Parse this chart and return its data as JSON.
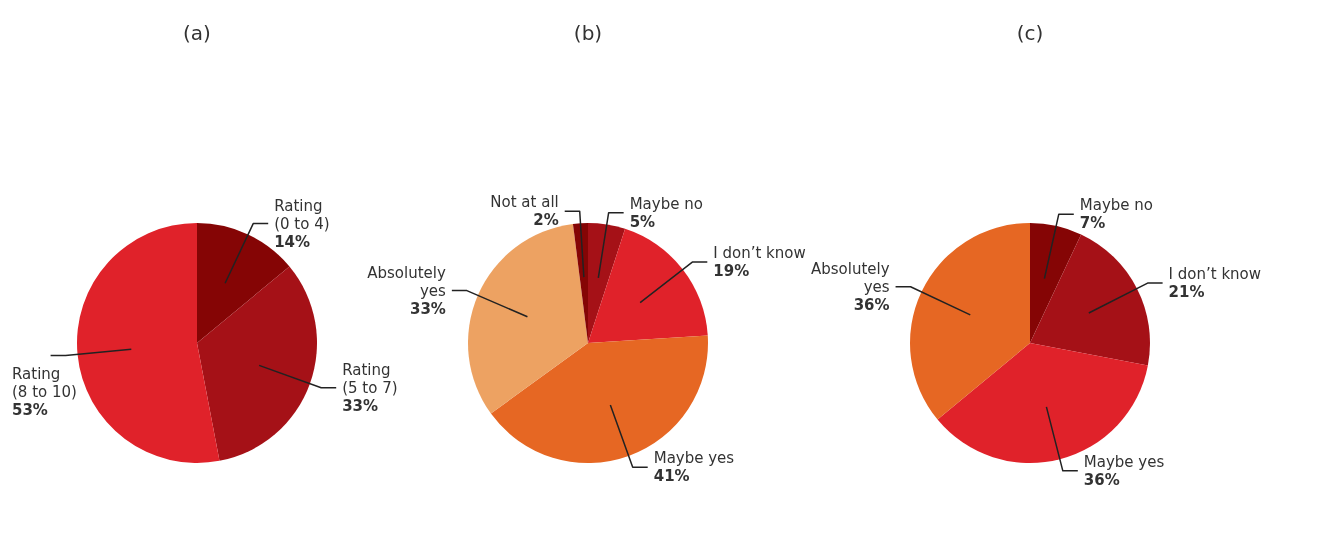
{
  "chart_data": [
    {
      "type": "pie",
      "title": "(a)",
      "categories": [
        "Rating\n(0 to 4)",
        "Rating\n(5 to 7)",
        "Rating\n(8 to 10)"
      ],
      "values": [
        14,
        33,
        53
      ],
      "value_labels": [
        "14%",
        "33%",
        "53%"
      ],
      "colors": [
        "#850505",
        "#a51117",
        "#e0222a"
      ]
    },
    {
      "type": "pie",
      "title": "(b)",
      "categories": [
        "Maybe no",
        "I don’t know",
        "Maybe yes",
        "Absolutely\nyes",
        "Not at all"
      ],
      "values": [
        5,
        19,
        41,
        33,
        2
      ],
      "value_labels": [
        "5%",
        "19%",
        "41%",
        "33%",
        "2%"
      ],
      "colors": [
        "#a51117",
        "#e0222a",
        "#e66723",
        "#eda262",
        "#850505"
      ]
    },
    {
      "type": "pie",
      "title": "(c)",
      "categories": [
        "Maybe no",
        "I don’t know",
        "Maybe yes",
        "Absolutely\nyes"
      ],
      "values": [
        7,
        21,
        36,
        36
      ],
      "value_labels": [
        "7%",
        "21%",
        "36%",
        "36%"
      ],
      "colors": [
        "#850505",
        "#a51117",
        "#e0222a",
        "#e66723"
      ]
    }
  ]
}
